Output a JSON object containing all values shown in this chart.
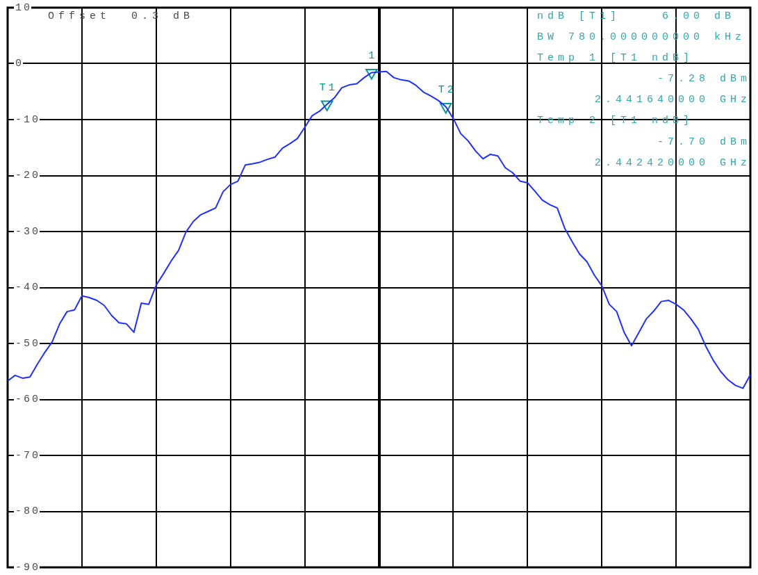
{
  "chart_data": {
    "type": "line",
    "categories": [
      null,
      null,
      null,
      null,
      null,
      null,
      null,
      null,
      null,
      null,
      null,
      null,
      null,
      null,
      null,
      null,
      null,
      null,
      null,
      null,
      null,
      null,
      null,
      null,
      null,
      null,
      null,
      null,
      null,
      null,
      null,
      null,
      null,
      null,
      null,
      null,
      null,
      null,
      null,
      null,
      null,
      null,
      null,
      null,
      null,
      null,
      null,
      null,
      null,
      null,
      null,
      null,
      null,
      null,
      null,
      null,
      null,
      null,
      null,
      null,
      null,
      null,
      null,
      null,
      null,
      null,
      null,
      null,
      null,
      null,
      null,
      null,
      null,
      null,
      null,
      null,
      null,
      null,
      null,
      null,
      null,
      null,
      null,
      null,
      null,
      null,
      null,
      null,
      null,
      null,
      null,
      null,
      null,
      null,
      null,
      null,
      null,
      null,
      null,
      null,
      null
    ],
    "series": [
      {
        "color": "#1f2fff",
        "values": [
          -56.7,
          -55.7,
          -56.2,
          -56.0,
          -53.7,
          -51.6,
          -49.7,
          -46.5,
          -44.3,
          -44.0,
          -41.5,
          -41.8,
          -42.3,
          -43.2,
          -45.0,
          -46.3,
          -46.5,
          -48.0,
          -42.8,
          -43.0,
          -39.6,
          -37.5,
          -35.3,
          -33.4,
          -30.1,
          -28.2,
          -27.0,
          -26.4,
          -25.8,
          -22.9,
          -21.6,
          -21.0,
          -18.1,
          -17.9,
          -17.6,
          -17.1,
          -16.7,
          -15.1,
          -14.3,
          -13.4,
          -11.4,
          -9.3,
          -8.5,
          -7.28,
          -6.1,
          -4.3,
          -3.8,
          -3.6,
          -2.5,
          -1.6,
          -1.5,
          -1.4,
          -2.5,
          -2.9,
          -3.1,
          -3.9,
          -5.1,
          -5.8,
          -6.6,
          -7.7,
          -9.8,
          -12.5,
          -13.8,
          -15.6,
          -17.0,
          -16.2,
          -16.5,
          -18.6,
          -19.5,
          -21.0,
          -21.3,
          -22.8,
          -24.4,
          -25.2,
          -25.8,
          -29.4,
          -31.8,
          -34.0,
          -35.4,
          -37.8,
          -39.7,
          -43.0,
          -44.3,
          -48.0,
          -50.4,
          -48.0,
          -45.6,
          -44.2,
          -42.5,
          -42.3,
          -43.0,
          -44.0,
          -45.6,
          -47.5,
          -50.5,
          -53.0,
          -55.0,
          -56.5,
          -57.5,
          -58.0,
          -55.6
        ]
      },
      {
        "name": "1",
        "type": "scatter",
        "marker": "triangle",
        "color": "#009999",
        "values": [
          null,
          null,
          null,
          null,
          null,
          null,
          null,
          null,
          null,
          null,
          null,
          null,
          null,
          null,
          null,
          null,
          null,
          null,
          null,
          null,
          null,
          null,
          null,
          null,
          null,
          null,
          null,
          null,
          null,
          null,
          null,
          null,
          null,
          null,
          null,
          null,
          null,
          null,
          null,
          null,
          null,
          null,
          null,
          null,
          null,
          null,
          null,
          null,
          null,
          -1.6,
          null,
          null,
          null,
          null,
          null,
          null,
          null,
          null,
          null,
          null,
          null,
          null,
          null,
          null,
          null,
          null,
          null,
          null,
          null,
          null,
          null,
          null,
          null,
          null,
          null,
          null,
          null,
          null,
          null,
          null,
          null,
          null,
          null,
          null,
          null,
          null,
          null,
          null,
          null,
          null,
          null,
          null,
          null,
          null,
          null,
          null,
          null,
          null,
          null,
          null,
          null
        ]
      },
      {
        "name": "T1",
        "type": "scatter",
        "marker": "triangle",
        "color": "#009999",
        "values": [
          null,
          null,
          null,
          null,
          null,
          null,
          null,
          null,
          null,
          null,
          null,
          null,
          null,
          null,
          null,
          null,
          null,
          null,
          null,
          null,
          null,
          null,
          null,
          null,
          null,
          null,
          null,
          null,
          null,
          null,
          null,
          null,
          null,
          null,
          null,
          null,
          null,
          null,
          null,
          null,
          null,
          null,
          null,
          -7.28,
          null,
          null,
          null,
          null,
          null,
          null,
          null,
          null,
          null,
          null,
          null,
          null,
          null,
          null,
          null,
          null,
          null,
          null,
          null,
          null,
          null,
          null,
          null,
          null,
          null,
          null,
          null,
          null,
          null,
          null,
          null,
          null,
          null,
          null,
          null,
          null,
          null,
          null,
          null,
          null,
          null,
          null,
          null,
          null,
          null,
          null,
          null,
          null,
          null,
          null,
          null,
          null,
          null,
          null,
          null,
          null,
          null
        ]
      },
      {
        "name": "T2",
        "type": "scatter",
        "marker": "triangle",
        "color": "#009999",
        "values": [
          null,
          null,
          null,
          null,
          null,
          null,
          null,
          null,
          null,
          null,
          null,
          null,
          null,
          null,
          null,
          null,
          null,
          null,
          null,
          null,
          null,
          null,
          null,
          null,
          null,
          null,
          null,
          null,
          null,
          null,
          null,
          null,
          null,
          null,
          null,
          null,
          null,
          null,
          null,
          null,
          null,
          null,
          null,
          null,
          null,
          null,
          null,
          null,
          null,
          null,
          null,
          null,
          null,
          null,
          null,
          null,
          null,
          null,
          null,
          -7.7,
          null,
          null,
          null,
          null,
          null,
          null,
          null,
          null,
          null,
          null,
          null,
          null,
          null,
          null,
          null,
          null,
          null,
          null,
          null,
          null,
          null,
          null,
          null,
          null,
          null,
          null,
          null,
          null,
          null,
          null,
          null,
          null,
          null,
          null,
          null,
          null,
          null,
          null,
          null,
          null,
          null
        ]
      }
    ],
    "ylim": [
      -90,
      10
    ],
    "yticks": [
      -90,
      -80,
      -70,
      -60,
      -50,
      -40,
      -30,
      -20,
      -10,
      0,
      10
    ],
    "grid": true,
    "tick_labels": "y",
    "annotations": [
      "Offset  0.3 dB",
      "ndB [T1]    6.00 dB",
      "BW 780.000000000 kHz",
      "Temp 1 [T1 ndB]",
      "-7.28 dBm",
      "2.441640000 GHz",
      "Temp 2 [T1 ndB]",
      "-7.70 dBm",
      "2.442420000 GHz"
    ]
  }
}
